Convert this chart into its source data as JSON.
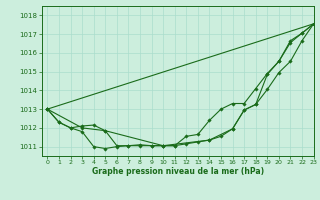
{
  "title": "Graphe pression niveau de la mer (hPa)",
  "bg_color": "#cceedd",
  "grid_color": "#aaddcc",
  "line_color": "#1a6b1a",
  "xlim": [
    -0.5,
    23
  ],
  "ylim": [
    1010.5,
    1018.5
  ],
  "yticks": [
    1011,
    1012,
    1013,
    1014,
    1015,
    1016,
    1017,
    1018
  ],
  "xticks": [
    0,
    1,
    2,
    3,
    4,
    5,
    6,
    7,
    8,
    9,
    10,
    11,
    12,
    13,
    14,
    15,
    16,
    17,
    18,
    19,
    20,
    21,
    22,
    23
  ],
  "line1_x": [
    0,
    1,
    2,
    3,
    4,
    5,
    6,
    7,
    8,
    9,
    10,
    11,
    12,
    13,
    14,
    15,
    16,
    17,
    18,
    19,
    20,
    21,
    22,
    23
  ],
  "line1_y": [
    1013.0,
    1012.3,
    1012.0,
    1011.8,
    1011.0,
    1010.9,
    1011.0,
    1011.05,
    1011.1,
    1011.05,
    1011.05,
    1011.05,
    1011.55,
    1011.65,
    1012.4,
    1013.0,
    1013.3,
    1013.3,
    1014.1,
    1014.9,
    1015.55,
    1016.65,
    1017.05,
    1017.55
  ],
  "line2_x": [
    0,
    1,
    2,
    3,
    4,
    5,
    6,
    7,
    8,
    9,
    10,
    11,
    12,
    13,
    14,
    15,
    16,
    17,
    18,
    19,
    20,
    21,
    22,
    23
  ],
  "line2_y": [
    1013.0,
    1012.3,
    1012.0,
    1012.1,
    1012.15,
    1011.85,
    1011.05,
    1011.05,
    1011.05,
    1011.05,
    1011.05,
    1011.05,
    1011.15,
    1011.25,
    1011.35,
    1011.55,
    1011.95,
    1012.95,
    1013.25,
    1014.05,
    1014.95,
    1015.55,
    1016.65,
    1017.55
  ],
  "line3_x": [
    0,
    23
  ],
  "line3_y": [
    1013.0,
    1017.55
  ],
  "line4_x": [
    0,
    3,
    5,
    10,
    14,
    16,
    17,
    18,
    19,
    20,
    21,
    22,
    23
  ],
  "line4_y": [
    1013.0,
    1012.0,
    1011.85,
    1011.05,
    1011.35,
    1011.95,
    1012.95,
    1013.25,
    1014.85,
    1015.55,
    1016.55,
    1017.05,
    1017.55
  ]
}
